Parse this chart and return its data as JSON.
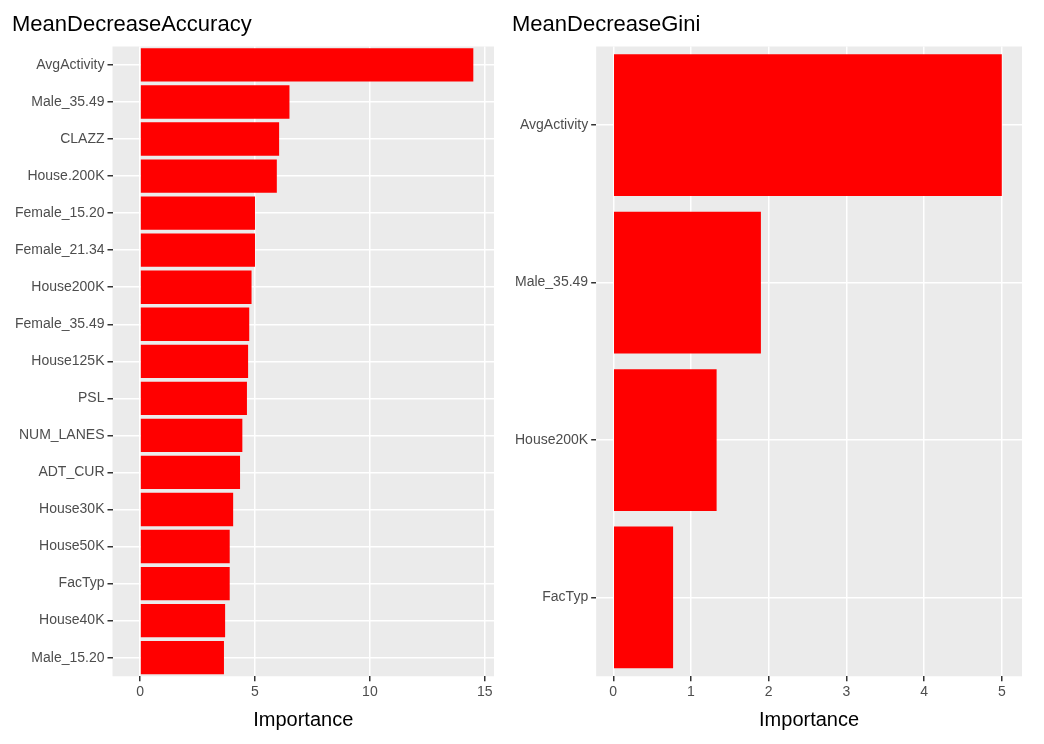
{
  "chart_data": [
    {
      "type": "bar",
      "orientation": "horizontal",
      "title": "MeanDecreaseAccuracy",
      "xlabel": "Importance",
      "categories": [
        "AvgActivity",
        "Male_35.49",
        "CLAZZ",
        "House.200K",
        "Female_15.20",
        "Female_21.34",
        "House200K",
        "Female_35.49",
        "House125K",
        "PSL",
        "NUM_LANES",
        "ADT_CUR",
        "House30K",
        "House50K",
        "FacTyp",
        "House40K",
        "Male_15.20"
      ],
      "values": [
        14.5,
        6.5,
        6.05,
        5.95,
        5.0,
        5.0,
        4.85,
        4.75,
        4.7,
        4.65,
        4.45,
        4.35,
        4.05,
        3.9,
        3.9,
        3.7,
        3.65
      ],
      "color": "#ff0000",
      "xlim": [
        -1.2,
        15.4
      ],
      "xticks": [
        0,
        5,
        10,
        15
      ],
      "grid": true
    },
    {
      "type": "bar",
      "orientation": "horizontal",
      "title": "MeanDecreaseGini",
      "xlabel": "Importance",
      "categories": [
        "AvgActivity",
        "Male_35.49",
        "House200K",
        "FacTyp"
      ],
      "values": [
        5.0,
        1.9,
        1.33,
        0.77
      ],
      "color": "#ff0000",
      "xlim": [
        -0.22,
        5.26
      ],
      "xticks": [
        0,
        1,
        2,
        3,
        4,
        5
      ],
      "grid": true
    }
  ]
}
